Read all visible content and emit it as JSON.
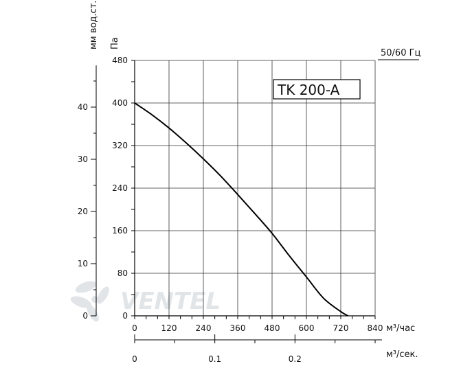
{
  "chart_data": {
    "type": "line",
    "title": "TK 200-A",
    "frequency_label": "50/60 Гц",
    "xlabel": "м³/час",
    "x2label": "м³/сек.",
    "ylabel": "Па",
    "y2label": "мм вод.ст.",
    "xlim": [
      0,
      840
    ],
    "ylim": [
      0,
      480
    ],
    "x_ticks": [
      "0",
      "120",
      "240",
      "360",
      "480",
      "600",
      "720",
      "840"
    ],
    "y_ticks": [
      "0",
      "80",
      "160",
      "240",
      "320",
      "400",
      "480"
    ],
    "x2_ticks": [
      "0",
      "0.1",
      "0.2"
    ],
    "x2_values": [
      0,
      0.1,
      0.2
    ],
    "x2lim": [
      0,
      0.3
    ],
    "y2_ticks": [
      "0",
      "10",
      "20",
      "30",
      "40"
    ],
    "y2_values": [
      0,
      10,
      20,
      30,
      40
    ],
    "grid": true,
    "series": [
      {
        "x": [
          0,
          60,
          120,
          180,
          240,
          300,
          360,
          420,
          480,
          540,
          600,
          660,
          720,
          745
        ],
        "y": [
          400,
          378,
          353,
          325,
          295,
          263,
          228,
          192,
          155,
          113,
          73,
          33,
          8,
          0
        ]
      }
    ],
    "colors": {
      "line": "#000000",
      "grid": "#333333",
      "watermark": "#c9d0d6"
    },
    "watermark_text": "VENTEL"
  }
}
